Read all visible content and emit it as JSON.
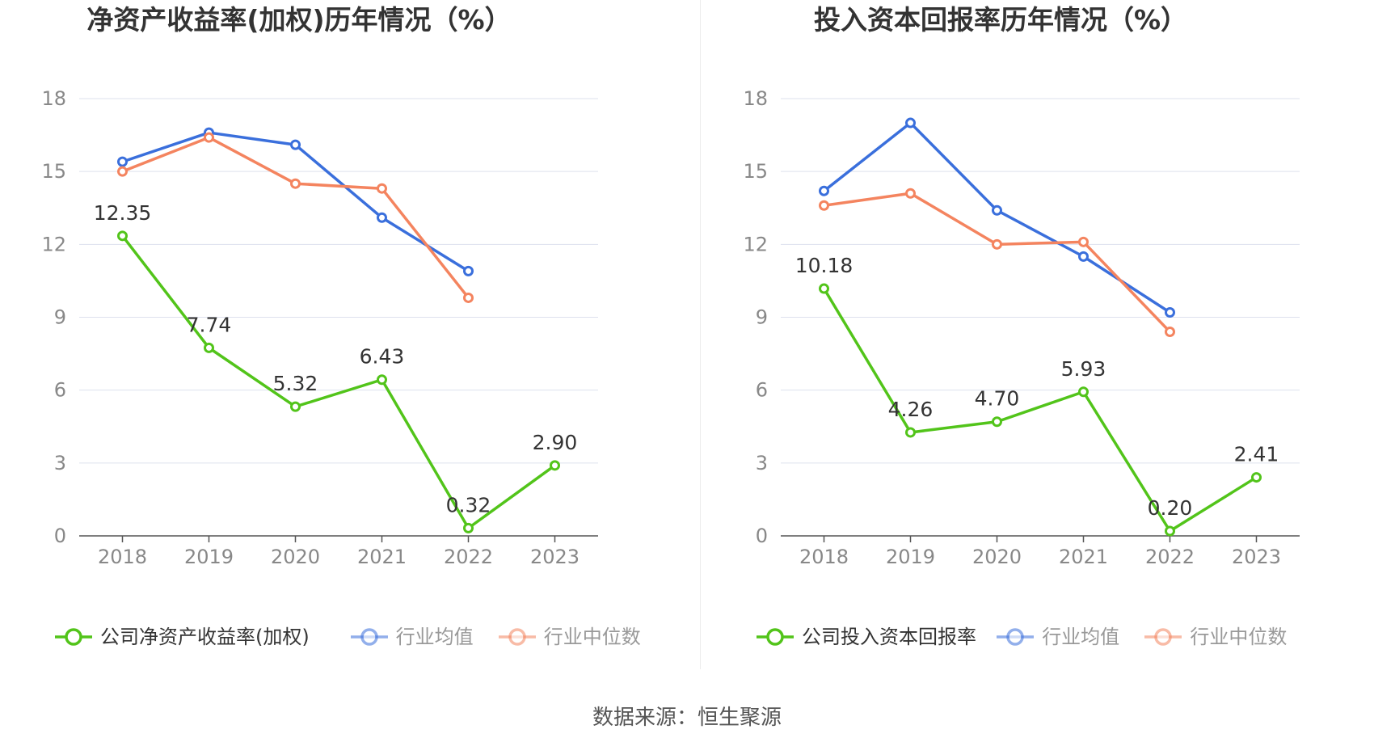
{
  "source_label": "数据来源：恒生聚源",
  "charts": [
    {
      "title": "净资产收益率(加权)历年情况（%）",
      "chart_data": {
        "type": "line",
        "x": [
          "2018",
          "2019",
          "2020",
          "2021",
          "2022",
          "2023"
        ],
        "ylim": [
          0,
          18
        ],
        "yticks": [
          0,
          3,
          6,
          9,
          12,
          15,
          18
        ],
        "grid": true,
        "legend": "bottom",
        "series": [
          {
            "name": "公司净资产收益率(加权)",
            "color": "#52c41a",
            "values": [
              12.35,
              7.74,
              5.32,
              6.43,
              0.32,
              2.9
            ],
            "labels": [
              "12.35",
              "7.74",
              "5.32",
              "6.43",
              "0.32",
              "2.90"
            ]
          },
          {
            "name": "行业均值",
            "color": "#3a6fdc",
            "values": [
              15.4,
              16.6,
              16.1,
              13.1,
              10.9,
              null
            ]
          },
          {
            "name": "行业中位数",
            "color": "#f4845f",
            "values": [
              15.0,
              16.4,
              14.5,
              14.3,
              9.8,
              null
            ]
          }
        ]
      }
    },
    {
      "title": "投入资本回报率历年情况（%）",
      "chart_data": {
        "type": "line",
        "x": [
          "2018",
          "2019",
          "2020",
          "2021",
          "2022",
          "2023"
        ],
        "ylim": [
          0,
          18
        ],
        "yticks": [
          0,
          3,
          6,
          9,
          12,
          15,
          18
        ],
        "grid": true,
        "legend": "bottom",
        "series": [
          {
            "name": "公司投入资本回报率",
            "color": "#52c41a",
            "values": [
              10.18,
              4.26,
              4.7,
              5.93,
              0.2,
              2.41
            ],
            "labels": [
              "10.18",
              "4.26",
              "4.70",
              "5.93",
              "0.20",
              "2.41"
            ]
          },
          {
            "name": "行业均值",
            "color": "#3a6fdc",
            "values": [
              14.2,
              17.0,
              13.4,
              11.5,
              9.2,
              null
            ]
          },
          {
            "name": "行业中位数",
            "color": "#f4845f",
            "values": [
              13.6,
              14.1,
              12.0,
              12.1,
              8.4,
              null
            ]
          }
        ]
      }
    }
  ]
}
